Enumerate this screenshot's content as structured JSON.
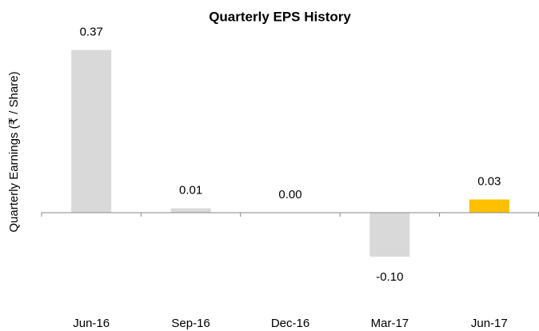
{
  "chart_data": {
    "type": "bar",
    "title": "Quarterly EPS History",
    "y_label": "Quarterly Earnings (₹ / Share)",
    "categories": [
      "Jun-16",
      "Sep-16",
      "Dec-16",
      "Mar-17",
      "Jun-17"
    ],
    "values": [
      0.37,
      0.01,
      0,
      -0.1,
      0.03
    ],
    "value_labels": [
      "0.37",
      "0.01",
      "0.00",
      "-0.10",
      "0.03"
    ],
    "colors": [
      "#d9d9d9",
      "#d9d9d9",
      "#d9d9d9",
      "#d9d9d9",
      "#ffc000"
    ],
    "ylim": [
      -0.2,
      0.4
    ]
  }
}
